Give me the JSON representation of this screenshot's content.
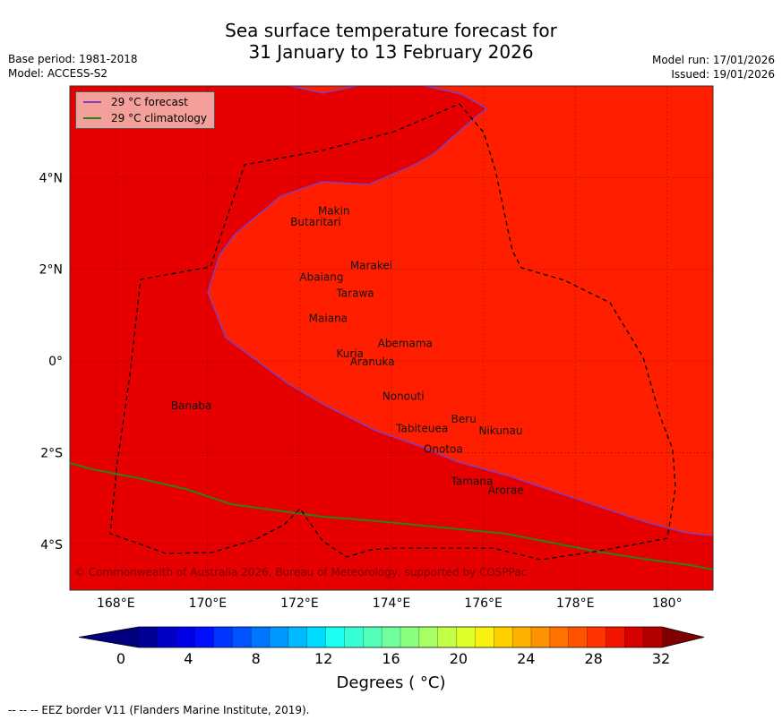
{
  "title": {
    "line1": "Sea surface temperature forecast for",
    "line2": "31 January to 13 February 2026"
  },
  "meta": {
    "base_period": "Base period: 1981-2018",
    "model": "Model: ACCESS-S2",
    "model_run": "Model run: 17/01/2026",
    "issued": "Issued: 19/01/2026"
  },
  "legend": {
    "forecast_label": "29 °C  forecast",
    "forecast_color": "#7f3fbf",
    "climatology_label": "29 °C  climatology",
    "climatology_color": "#2e7d1e"
  },
  "map": {
    "lon_range": [
      167,
      181
    ],
    "lat_range": [
      -5,
      6
    ],
    "lon_ticks": [
      "168°E",
      "170°E",
      "172°E",
      "174°E",
      "176°E",
      "178°E",
      "180°"
    ],
    "lat_ticks": [
      "4°N",
      "2°N",
      "0°",
      "2°S",
      "4°S"
    ],
    "warm_color": "#ff1e00",
    "cooler_color": "#e60000",
    "islands": [
      "Makin",
      "Butaritari",
      "Marakei",
      "Abaiang",
      "Tarawa",
      "Maiana",
      "Abemama",
      "Kuria",
      "Aranuka",
      "Nonouti",
      "Banaba",
      "Beru",
      "Nikunau",
      "Tabiteuea",
      "Onotoa",
      "Tamana",
      "Arorae"
    ],
    "copyright": "© Commonwealth of Australia 2026, Bureau of Meteorology, supported by COSPPac"
  },
  "colorbar": {
    "min": 0,
    "max": 32,
    "step": 1.5,
    "ticks": [
      "0",
      "4",
      "8",
      "12",
      "16",
      "20",
      "24",
      "28",
      "32"
    ],
    "label": "Degrees ( °C)",
    "colors": [
      "#000097",
      "#0000c6",
      "#0000e8",
      "#0010ff",
      "#0034ff",
      "#0054ff",
      "#0076ff",
      "#0098ff",
      "#00baff",
      "#00dcff",
      "#1bfff0",
      "#37ffd4",
      "#53ffb7",
      "#6fff9b",
      "#8bff7f",
      "#a7ff63",
      "#c3ff47",
      "#dfff2b",
      "#fbf10f",
      "#ffd000",
      "#ffb100",
      "#ff9200",
      "#ff7200",
      "#ff5300",
      "#ff3400",
      "#f31500",
      "#d60000",
      "#b20000"
    ],
    "low_extend_color": "#00007f",
    "high_extend_color": "#7f0000"
  },
  "eez_note": "--  --  -- EEZ border V11 (Flanders Marine Institute, 2019)."
}
